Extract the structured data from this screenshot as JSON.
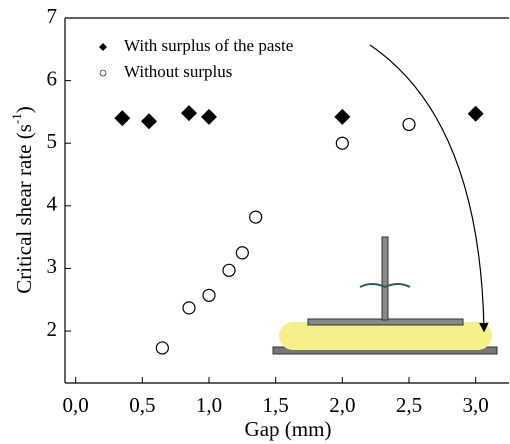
{
  "chart_data": {
    "type": "scatter",
    "x_label": "Gap (mm)",
    "y_label": "Critical shear rate (s",
    "y_label_sup": "-1",
    "y_label_end": ")",
    "xlim": [
      -0.08,
      3.25
    ],
    "ylim": [
      1.17,
      7
    ],
    "xticks": [
      {
        "value": 0,
        "label": "0,0"
      },
      {
        "value": 0.5,
        "label": "0,5"
      },
      {
        "value": 1,
        "label": "1,0"
      },
      {
        "value": 1.5,
        "label": "1,5"
      },
      {
        "value": 2,
        "label": "2,0"
      },
      {
        "value": 2.5,
        "label": "2,5"
      },
      {
        "value": 3,
        "label": "3,0"
      }
    ],
    "yticks": [
      2,
      3,
      4,
      5,
      6,
      7
    ],
    "series": [
      {
        "name": "With surplus of the paste",
        "color": "#000000",
        "marker": "diamond",
        "x": [
          0.35,
          0.55,
          0.85,
          1.0,
          2.0,
          3.0
        ],
        "values": [
          5.4,
          5.35,
          5.48,
          5.42,
          5.42,
          5.47
        ]
      },
      {
        "name": "Without surplus",
        "color": "#000000",
        "marker": "circle",
        "x": [
          0.65,
          0.85,
          1.0,
          1.15,
          1.25,
          1.35,
          2.0,
          2.5
        ],
        "values": [
          1.73,
          2.37,
          2.57,
          2.97,
          3.25,
          3.82,
          5.0,
          5.3
        ]
      }
    ]
  }
}
